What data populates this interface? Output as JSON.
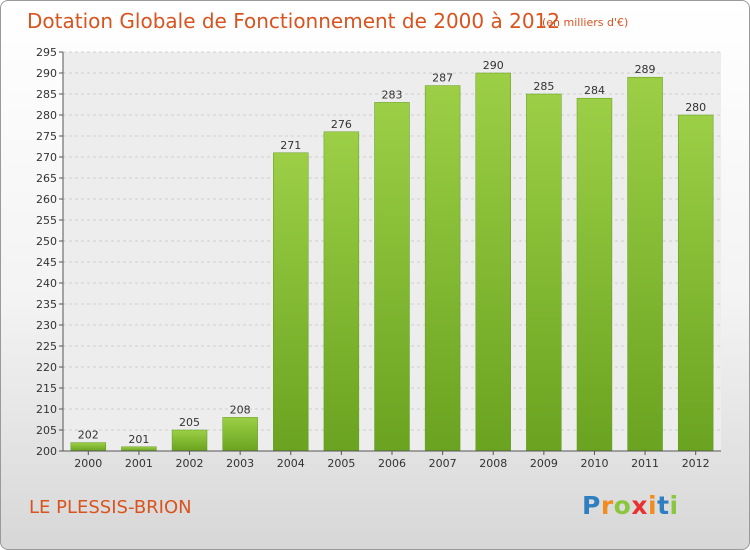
{
  "title": "Dotation Globale de Fonctionnement de 2000 à 2012",
  "subtitle": "(en milliers d'€)",
  "commune": "LE PLESSIS-BRION",
  "logo": {
    "letters": [
      "P",
      "r",
      "o",
      "x",
      "i",
      "t",
      "i"
    ],
    "colors": [
      "#2d7fc1",
      "#f28c1e",
      "#8cc63f",
      "#e8322f",
      "#f28c1e",
      "#2d7fc1",
      "#8cc63f"
    ]
  },
  "colors": {
    "bar": "#7cb82f",
    "bar_light": "#9ccf46",
    "title": "#d9531e",
    "grid": "#cfcfcf"
  },
  "chart_data": {
    "type": "bar",
    "title": "Dotation Globale de Fonctionnement de 2000 à 2012",
    "subtitle": "(en milliers d'€)",
    "categories": [
      "2000",
      "2001",
      "2002",
      "2003",
      "2004",
      "2005",
      "2006",
      "2007",
      "2008",
      "2009",
      "2010",
      "2011",
      "2012"
    ],
    "values": [
      202,
      201,
      205,
      208,
      271,
      276,
      283,
      287,
      290,
      285,
      284,
      289,
      280
    ],
    "ylim": [
      200,
      295
    ],
    "yticks": [
      200,
      205,
      210,
      215,
      220,
      225,
      230,
      235,
      240,
      245,
      250,
      255,
      260,
      265,
      270,
      275,
      280,
      285,
      290,
      295
    ],
    "grid": true,
    "xlabel": "",
    "ylabel": ""
  }
}
